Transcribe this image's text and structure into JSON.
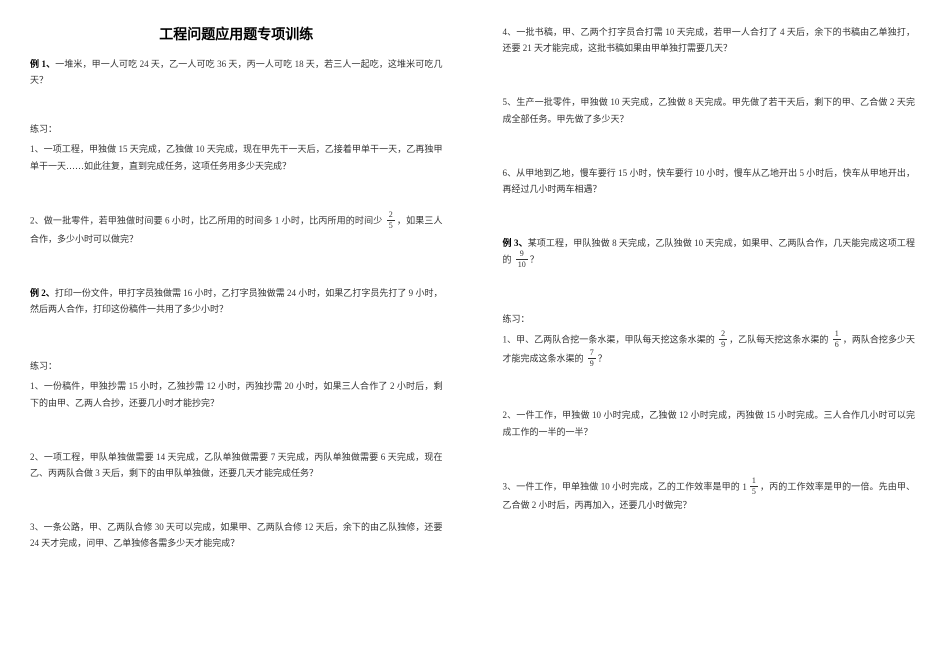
{
  "title": "工程问题应用题专项训练",
  "left": {
    "ex1": {
      "label": "例 1、",
      "text": "一堆米，甲一人可吃 24 天，乙一人可吃 36 天，丙一人可吃 18 天，若三人一起吃，这堆米可吃几天？"
    },
    "practice1_label": "练习：",
    "p1_1": "1、一项工程，甲独做 15 天完成，乙独做 10 天完成，现在甲先干一天后，乙接着甲单干一天，乙再独甲单干一天……如此往复，直到完成任务，这项任务用多少天完成？",
    "p1_2_a": "2、做一批零件，若甲独做时间要 6 小时，比乙所用的时间多 1 小时，比丙所用的时间少",
    "p1_2_frac": {
      "num": "2",
      "den": "5"
    },
    "p1_2_b": "，如果三人合作，多少小时可以做完？",
    "ex2": {
      "label": "例 2、",
      "text": "打印一份文件，甲打字员独做需 16 小时，乙打字员独做需 24 小时，如果乙打字员先打了 9 小时，然后两人合作，打印这份稿件一共用了多少小时？"
    },
    "practice2_label": "练习：",
    "p2_1": "1、一份稿件，甲独抄需 15 小时，乙独抄需 12 小时，丙独抄需 20 小时，如果三人合作了 2 小时后，剩下的由甲、乙两人合抄，还要几小时才能抄完？",
    "p2_2": "2、一项工程，甲队单独做需要 14 天完成，乙队单独做需要 7 天完成，丙队单独做需要 6 天完成，现在乙、丙两队合做 3 天后，剩下的由甲队单独做，还要几天才能完成任务？",
    "p2_3": "3、一条公路，甲、乙两队合修 30 天可以完成，如果甲、乙两队合修 12 天后，余下的由乙队独修，还要 24 天才完成，问甲、乙单独修各需多少天才能完成？"
  },
  "right": {
    "p_r4": "4、一批书稿，甲、乙两个打字员合打需 10 天完成，若甲一人合打了 4 天后，余下的书稿由乙单独打，还要 21 天才能完成，这批书稿如果由甲单独打需要几天？",
    "p_r5": "5、生产一批零件，甲独做 10 天完成，乙独做 8 天完成。甲先做了若干天后，剩下的甲、乙合做 2 天完成全部任务。甲先做了多少天？",
    "p_r6": "6、从甲地到乙地，慢车要行 15 小时，快车要行 10 小时，慢车从乙地开出 5 小时后，快车从甲地开出，再经过几小时两车相遇？",
    "ex3_label": "例 3、",
    "ex3_a": "某项工程，甲队独做  8 天完成，乙队独做  10 天完成，如果甲、乙两队合作，几天能完成这项工程的",
    "ex3_frac": {
      "num": "9",
      "den": "10"
    },
    "ex3_b": "？",
    "practice3_label": "练习：",
    "p3_1_a": "1、甲、乙两队合挖一条水渠，甲队每天挖这条水渠的",
    "p3_1_f1": {
      "num": "2",
      "den": "9"
    },
    "p3_1_b": "，乙队每天挖这条水渠的",
    "p3_1_f2": {
      "num": "1",
      "den": "6"
    },
    "p3_1_c": "，两队合挖多少天才能完成这条水渠的",
    "p3_1_f3": {
      "num": "7",
      "den": "9"
    },
    "p3_1_d": "？",
    "p3_2": "2、一件工作，甲独做 10 小时完成，乙独做 12 小时完成，丙独做 15 小时完成。三人合作几小时可以完成工作的一半的一半？",
    "p3_3_a": "3、一件工作，甲单独做 10 小时完成，乙的工作效率是甲的",
    "p3_3_mixed": {
      "whole": "1",
      "num": "1",
      "den": "5"
    },
    "p3_3_b": "，丙的工作效率是甲的一倍。先由甲、乙合做 2 小时后，丙再加入，还要几小时做完？"
  },
  "colors": {
    "text": "#333333",
    "title": "#000000",
    "background": "#ffffff"
  },
  "typography": {
    "title_fontsize": 14,
    "body_fontsize": 9,
    "font_family": "SimSun"
  }
}
